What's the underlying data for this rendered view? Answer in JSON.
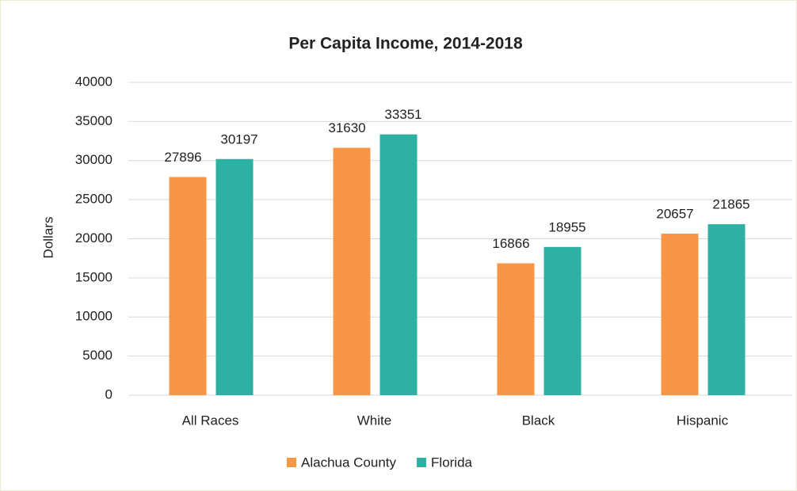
{
  "chart_data": {
    "type": "bar",
    "title": "Per Capita Income, 2014-2018",
    "y_label": "Dollars",
    "categories": [
      "All Races",
      "White",
      "Black",
      "Hispanic"
    ],
    "series": [
      {
        "name": "Alachua County",
        "color": "#f79646",
        "values": [
          27896,
          31630,
          16866,
          20657
        ]
      },
      {
        "name": "Florida",
        "color": "#2eb0a2",
        "values": [
          30197,
          33351,
          18955,
          21865
        ]
      }
    ],
    "ylim": [
      0,
      40000
    ],
    "yticks": [
      0,
      5000,
      10000,
      15000,
      20000,
      25000,
      30000,
      35000,
      40000
    ],
    "grid": true,
    "legend": "bottom"
  }
}
